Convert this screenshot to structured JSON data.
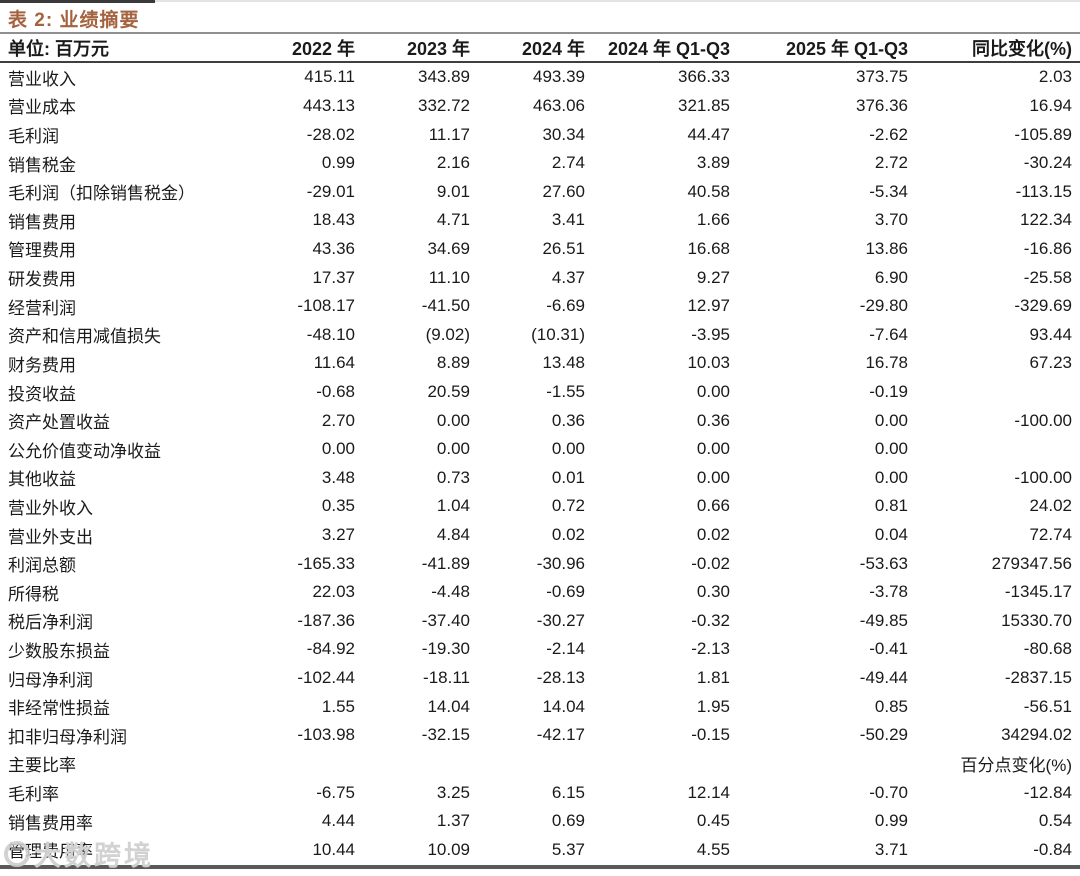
{
  "title": "表 2:  业绩摘要",
  "watermark": {
    "text": "大数跨境",
    "icon": "circle-logo-icon"
  },
  "colors": {
    "title_accent": "#a4623e",
    "rule_light": "#8f8f8f",
    "rule_dark": "#3f3f3f",
    "bottom_rule": "#595959",
    "text": "#1a1a1a",
    "watermark": "#cdcdcd"
  },
  "table": {
    "columns": [
      "单位:  百万元",
      "2022 年",
      "2023 年",
      "2024 年",
      "2024 年 Q1-Q3",
      "2025 年 Q1-Q3",
      "同比变化(%)"
    ],
    "rows": [
      {
        "label": "营业收入",
        "values": [
          "415.11",
          "343.89",
          "493.39",
          "366.33",
          "373.75",
          "2.03"
        ]
      },
      {
        "label": "营业成本",
        "values": [
          "443.13",
          "332.72",
          "463.06",
          "321.85",
          "376.36",
          "16.94"
        ]
      },
      {
        "label": "毛利润",
        "values": [
          "-28.02",
          "11.17",
          "30.34",
          "44.47",
          "-2.62",
          "-105.89"
        ]
      },
      {
        "label": "销售税金",
        "values": [
          "0.99",
          "2.16",
          "2.74",
          "3.89",
          "2.72",
          "-30.24"
        ]
      },
      {
        "label": "毛利润（扣除销售税金）",
        "values": [
          "-29.01",
          "9.01",
          "27.60",
          "40.58",
          "-5.34",
          "-113.15"
        ]
      },
      {
        "label": "销售费用",
        "values": [
          "18.43",
          "4.71",
          "3.41",
          "1.66",
          "3.70",
          "122.34"
        ]
      },
      {
        "label": "管理费用",
        "values": [
          "43.36",
          "34.69",
          "26.51",
          "16.68",
          "13.86",
          "-16.86"
        ]
      },
      {
        "label": "研发费用",
        "values": [
          "17.37",
          "11.10",
          "4.37",
          "9.27",
          "6.90",
          "-25.58"
        ]
      },
      {
        "label": "经营利润",
        "values": [
          "-108.17",
          "-41.50",
          "-6.69",
          "12.97",
          "-29.80",
          "-329.69"
        ]
      },
      {
        "label": "资产和信用减值损失",
        "values": [
          "-48.10",
          "(9.02)",
          "(10.31)",
          "-3.95",
          "-7.64",
          "93.44"
        ]
      },
      {
        "label": "财务费用",
        "values": [
          "11.64",
          "8.89",
          "13.48",
          "10.03",
          "16.78",
          "67.23"
        ]
      },
      {
        "label": "投资收益",
        "values": [
          "-0.68",
          "20.59",
          "-1.55",
          "0.00",
          "-0.19",
          ""
        ]
      },
      {
        "label": "资产处置收益",
        "values": [
          "2.70",
          "0.00",
          "0.36",
          "0.36",
          "0.00",
          "-100.00"
        ]
      },
      {
        "label": "公允价值变动净收益",
        "values": [
          "0.00",
          "0.00",
          "0.00",
          "0.00",
          "0.00",
          ""
        ]
      },
      {
        "label": "其他收益",
        "values": [
          "3.48",
          "0.73",
          "0.01",
          "0.00",
          "0.00",
          "-100.00"
        ]
      },
      {
        "label": "营业外收入",
        "values": [
          "0.35",
          "1.04",
          "0.72",
          "0.66",
          "0.81",
          "24.02"
        ]
      },
      {
        "label": "营业外支出",
        "values": [
          "3.27",
          "4.84",
          "0.02",
          "0.02",
          "0.04",
          "72.74"
        ]
      },
      {
        "label": "利润总额",
        "values": [
          "-165.33",
          "-41.89",
          "-30.96",
          "-0.02",
          "-53.63",
          "279347.56"
        ]
      },
      {
        "label": "所得税",
        "values": [
          "22.03",
          "-4.48",
          "-0.69",
          "0.30",
          "-3.78",
          "-1345.17"
        ]
      },
      {
        "label": "税后净利润",
        "values": [
          "-187.36",
          "-37.40",
          "-30.27",
          "-0.32",
          "-49.85",
          "15330.70"
        ]
      },
      {
        "label": "少数股东损益",
        "values": [
          "-84.92",
          "-19.30",
          "-2.14",
          "-2.13",
          "-0.41",
          "-80.68"
        ]
      },
      {
        "label": "归母净利润",
        "values": [
          "-102.44",
          "-18.11",
          "-28.13",
          "1.81",
          "-49.44",
          "-2837.15"
        ]
      },
      {
        "label": "非经常性损益",
        "values": [
          "1.55",
          "14.04",
          "14.04",
          "1.95",
          "0.85",
          "-56.51"
        ]
      },
      {
        "label": "扣非归母净利润",
        "values": [
          "-103.98",
          "-32.15",
          "-42.17",
          "-0.15",
          "-50.29",
          "34294.02"
        ]
      },
      {
        "label": "主要比率",
        "values": [
          "",
          "",
          "",
          "",
          "",
          "百分点变化(%)"
        ]
      },
      {
        "label": "毛利率",
        "values": [
          "-6.75",
          "3.25",
          "6.15",
          "12.14",
          "-0.70",
          "-12.84"
        ]
      },
      {
        "label": "销售费用率",
        "values": [
          "4.44",
          "1.37",
          "0.69",
          "0.45",
          "0.99",
          "0.54"
        ]
      },
      {
        "label": "管理费用率",
        "values": [
          "10.44",
          "10.09",
          "5.37",
          "4.55",
          "3.71",
          "-0.84"
        ]
      }
    ]
  }
}
